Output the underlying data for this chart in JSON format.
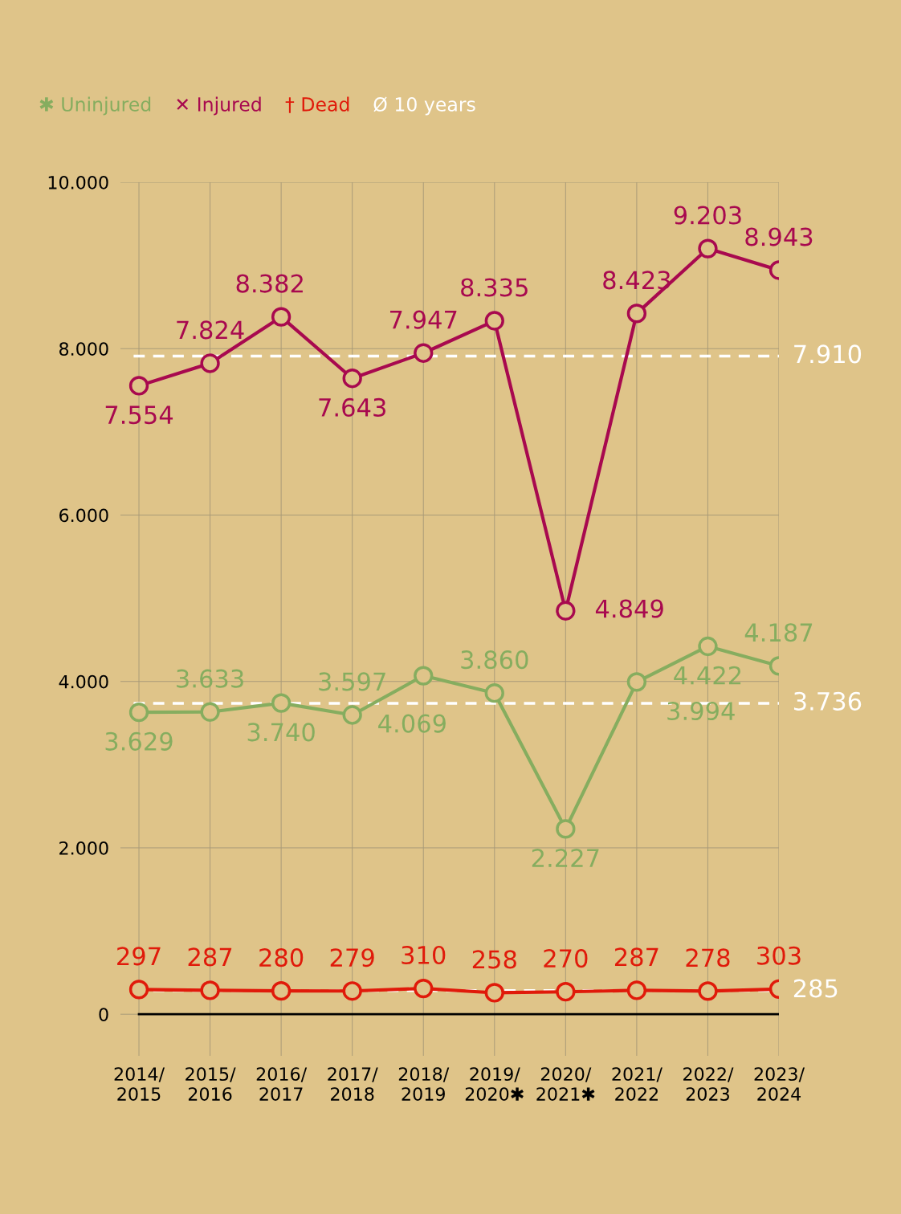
{
  "chart_data": {
    "type": "line",
    "categories": [
      "2014/\n2015",
      "2015/\n2016",
      "2016/\n2017",
      "2017/\n2018",
      "2018/\n2019",
      "2019/\n2020✱",
      "2020/\n2021✱",
      "2021/\n2022",
      "2022/\n2023",
      "2023/\n2024"
    ],
    "series": [
      {
        "name": "✱ Uninjured",
        "color": "#86ad5f",
        "values": [
          3629,
          3633,
          3740,
          3597,
          4069,
          3860,
          2227,
          3994,
          4422,
          4187
        ],
        "value_labels": [
          "3.629",
          "3.633",
          "3.740",
          "3.597",
          "4.069",
          "3.860",
          "2.227",
          "3.994",
          "4.422",
          "4.187"
        ]
      },
      {
        "name": "✕ Injured",
        "color": "#a8094f",
        "values": [
          7554,
          7824,
          8382,
          7643,
          7947,
          8335,
          4849,
          8423,
          9203,
          8943
        ],
        "value_labels": [
          "7.554",
          "7.824",
          "8.382",
          "7.643",
          "7.947",
          "8.335",
          "4.849",
          "8.423",
          "9.203",
          "8.943"
        ]
      },
      {
        "name": "† Dead",
        "color": "#e01a0a",
        "values": [
          297,
          287,
          280,
          279,
          310,
          258,
          270,
          287,
          278,
          303
        ],
        "value_labels": [
          "297",
          "287",
          "280",
          "279",
          "310",
          "258",
          "270",
          "287",
          "278",
          "303"
        ]
      }
    ],
    "ref_lines": [
      {
        "axis": "y",
        "value": 7910,
        "label": "7.910",
        "color": "#ffffff",
        "line_style": "dashed"
      },
      {
        "axis": "y",
        "value": 3736,
        "label": "3.736",
        "color": "#ffffff",
        "line_style": "dashed"
      },
      {
        "axis": "y",
        "value": 285,
        "label": "285",
        "color": "#ffffff",
        "line_style": "dashed"
      }
    ],
    "annotations": [
      "Ø 10 years"
    ],
    "ylim": [
      -500,
      10000
    ],
    "yticks": [
      {
        "value": 0,
        "label": "0"
      },
      {
        "value": 2000,
        "label": "2.000"
      },
      {
        "value": 4000,
        "label": "4.000"
      },
      {
        "value": 6000,
        "label": "6.000"
      },
      {
        "value": 8000,
        "label": "8.000"
      },
      {
        "value": 10000,
        "label": "10.000"
      }
    ],
    "grid": true,
    "legend": "top left",
    "marker": "circle",
    "line_style": "solid"
  }
}
